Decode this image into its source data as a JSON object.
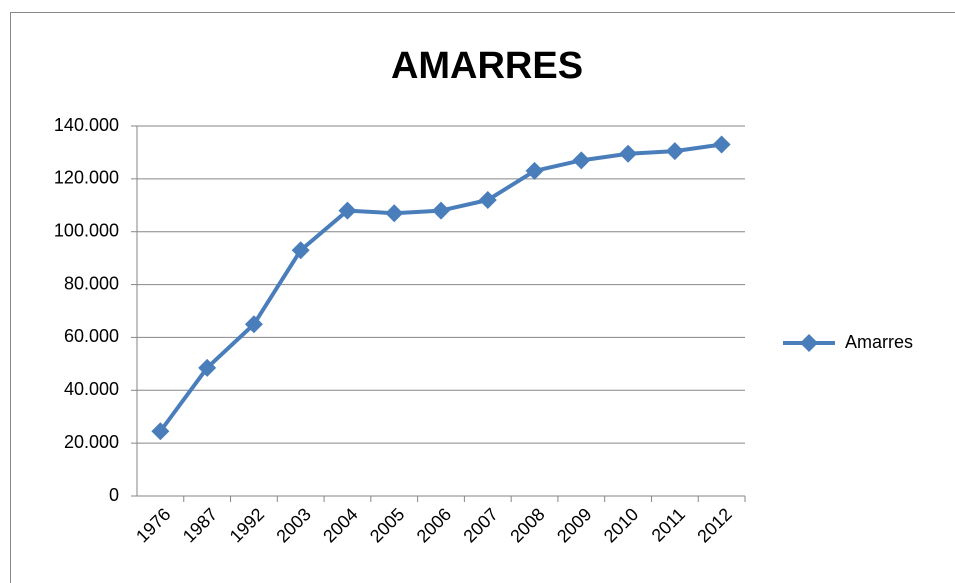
{
  "chart_data": {
    "type": "line",
    "title": "AMARRES",
    "categories": [
      "1976",
      "1987",
      "1992",
      "2003",
      "2004",
      "2005",
      "2006",
      "2007",
      "2008",
      "2009",
      "2010",
      "2011",
      "2012"
    ],
    "series": [
      {
        "name": "Amarres",
        "color": "#4a7ebb",
        "values": [
          24500,
          48500,
          65000,
          93000,
          108000,
          107000,
          108000,
          112000,
          123000,
          127000,
          129500,
          130500,
          133000
        ]
      }
    ],
    "ylim": [
      0,
      140000
    ],
    "yticks": [
      0,
      {
        "value": 20000,
        "label": "20.000"
      },
      {
        "value": 40000,
        "label": "40.000"
      },
      {
        "value": 60000,
        "label": "60.000"
      },
      {
        "value": 80000,
        "label": "80.000"
      },
      {
        "value": 100000,
        "label": "100.000"
      },
      {
        "value": 120000,
        "label": "120.000"
      },
      {
        "value": 140000,
        "label": "140.000"
      }
    ],
    "grid": true,
    "legend": "right"
  }
}
